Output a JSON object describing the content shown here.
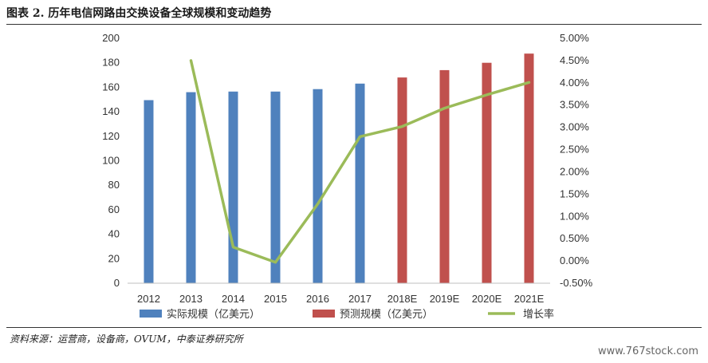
{
  "header": {
    "title": "图表 2. 历年电信网路由交换设备全球规模和变动趋势"
  },
  "footer": {
    "source": "资料来源：运营商，设备商，OVUM，中泰证券研究所",
    "watermark": "www.767stock.com"
  },
  "chart_data": {
    "type": "bar",
    "categories": [
      "2012",
      "2013",
      "2014",
      "2015",
      "2016",
      "2017",
      "2018E",
      "2019E",
      "2020E",
      "2021E"
    ],
    "ylim": [
      0,
      200
    ],
    "y2lim": [
      -0.005,
      0.05
    ],
    "yticks": [
      "0",
      "20",
      "40",
      "60",
      "80",
      "100",
      "120",
      "140",
      "160",
      "180",
      "200"
    ],
    "y2ticks": [
      "-0.50%",
      "0.00%",
      "0.50%",
      "1.00%",
      "1.50%",
      "2.00%",
      "2.50%",
      "3.00%",
      "3.50%",
      "4.00%",
      "4.50%",
      "5.00%"
    ],
    "legend_position": "bottom",
    "series": [
      {
        "name": "实际规模（亿美元）",
        "kind": "bar",
        "color": "#4F81BD",
        "values": [
          149.5,
          156,
          156.5,
          156.5,
          158.5,
          163,
          null,
          null,
          null,
          null
        ]
      },
      {
        "name": "预测规模（亿美元）",
        "kind": "bar",
        "color": "#C0504D",
        "values": [
          null,
          null,
          null,
          null,
          null,
          null,
          168,
          174,
          180,
          187.5
        ]
      },
      {
        "name": "增长率",
        "kind": "line",
        "axis": "right",
        "color": "#9BBB59",
        "values": [
          null,
          0.045,
          0.0031,
          -0.0003,
          0.0128,
          0.0279,
          0.0302,
          0.0343,
          0.0373,
          0.0401
        ]
      }
    ]
  }
}
